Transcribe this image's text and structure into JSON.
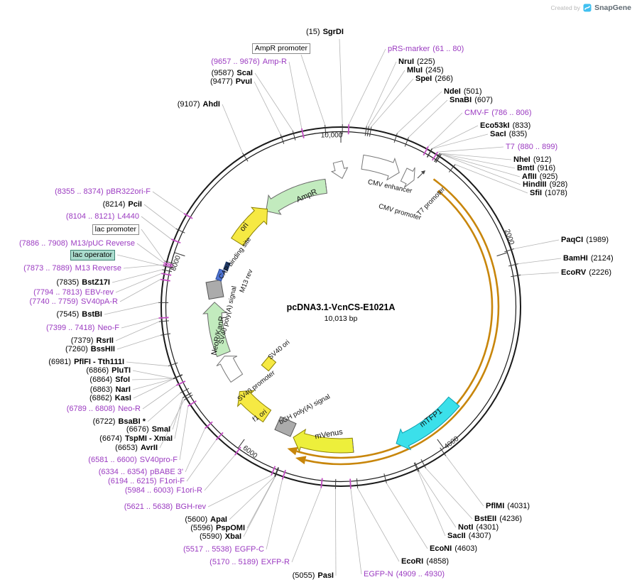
{
  "meta": {
    "created_by": "Created by",
    "brand": "SnapGene"
  },
  "plasmid": {
    "name": "pcDNA3.1-VcnCS-E1021A",
    "size": "10,013 bp"
  },
  "axis_ticks": {
    "k10": "10,000",
    "k2": "2000",
    "k4": "4000",
    "k6": "6000",
    "k8": "8000"
  },
  "colors": {
    "primer_purple": "#9B3BC1",
    "site_tick_purple": "#C44FC4",
    "cds_orange": "#C8860B",
    "feature_green": "#C2EBBE",
    "feature_yellow": "#F6E943",
    "feature_cyan": "#3BE0EA",
    "lac_operator_highlight": "#AADCCE"
  },
  "features": {
    "ampr": "AmpR",
    "ori": "ori",
    "cap_binding": "CAP binding site",
    "m13_rev": "M13 rev",
    "sv40_pa": "SV40 poly(A) signal",
    "neor_kanr": "NeoR/KanR",
    "sv40_ori": "SV40 ori",
    "sv40_promoter": "SV40 promoter",
    "f1_ori": "f1 ori",
    "bgh_pa": "bGH poly(A) signal",
    "mvenus": "mVenus",
    "mtfp1": "mTFP1",
    "cmv_enhancer": "CMV enhancer",
    "cmv_promoter": "CMV promoter",
    "t7_promoter": "T7 promoter"
  },
  "labels": {
    "sgrdi": {
      "a": "(15)",
      "b": "SgrDI"
    },
    "ampr_promoter": {
      "t": "AmpR promoter"
    },
    "amp_r": {
      "a": "(9657 .. 9676)",
      "b": "Amp-R"
    },
    "scai": {
      "a": "(9587)",
      "b": "ScaI"
    },
    "pvui": {
      "a": "(9477)",
      "b": "PvuI"
    },
    "ahdi": {
      "a": "(9107)",
      "b": "AhdI"
    },
    "pbr322ori_f": {
      "a": "(8355 .. 8374)",
      "b": "pBR322ori-F"
    },
    "pcii": {
      "a": "(8214)",
      "b": "PciI"
    },
    "l4440": {
      "a": "(8104 .. 8121)",
      "b": "L4440"
    },
    "lac_promoter": {
      "t": "lac promoter"
    },
    "m13_puc_reverse": {
      "a": "(7886 .. 7908)",
      "b": "M13/pUC Reverse"
    },
    "lac_operator": {
      "t": "lac operator"
    },
    "m13_reverse": {
      "a": "(7873 .. 7889)",
      "b": "M13 Reverse"
    },
    "bstz17i": {
      "a": "(7835)",
      "b": "BstZ17I"
    },
    "ebv_rev": {
      "a": "(7794 .. 7813)",
      "b": "EBV-rev"
    },
    "sv40pa_r": {
      "a": "(7740 .. 7759)",
      "b": "SV40pA-R"
    },
    "bstbi": {
      "a": "(7545)",
      "b": "BstBI"
    },
    "neo_f": {
      "a": "(7399 .. 7418)",
      "b": "Neo-F"
    },
    "rsrii": {
      "a": "(7379)",
      "b": "RsrII"
    },
    "bsshii": {
      "a": "(7260)",
      "b": "BssHII"
    },
    "pflfi_tth111i": {
      "a": "(6981)",
      "b": "PflFI - Tth111I"
    },
    "pluti": {
      "a": "(6866)",
      "b": "PluTI"
    },
    "sfoi": {
      "a": "(6864)",
      "b": "SfoI"
    },
    "nari": {
      "a": "(6863)",
      "b": "NarI"
    },
    "kasi": {
      "a": "(6862)",
      "b": "KasI"
    },
    "neo_r": {
      "a": "(6789 .. 6808)",
      "b": "Neo-R"
    },
    "bsabi": {
      "a": "(6722)",
      "b": "BsaBI *"
    },
    "smai": {
      "a": "(6676)",
      "b": "SmaI"
    },
    "tspmi_xmai": {
      "a": "(6674)",
      "b": "TspMI - XmaI"
    },
    "avrii": {
      "a": "(6653)",
      "b": "AvrII"
    },
    "sv40pro_f": {
      "a": "(6581 .. 6600)",
      "b": "SV40pro-F"
    },
    "pbabe_3": {
      "a": "(6334 .. 6354)",
      "b": "pBABE 3'"
    },
    "f1ori_f": {
      "a": "(6194 .. 6215)",
      "b": "F1ori-F"
    },
    "f1ori_r": {
      "a": "(5984 .. 6003)",
      "b": "F1ori-R"
    },
    "bgh_rev": {
      "a": "(5621 .. 5638)",
      "b": "BGH-rev"
    },
    "apai": {
      "a": "(5600)",
      "b": "ApaI"
    },
    "pspomi": {
      "a": "(5596)",
      "b": "PspOMI"
    },
    "xbai": {
      "a": "(5590)",
      "b": "XbaI"
    },
    "egfp_c": {
      "a": "(5517 .. 5538)",
      "b": "EGFP-C"
    },
    "exfp_r": {
      "a": "(5170 .. 5189)",
      "b": "EXFP-R"
    },
    "pasi": {
      "a": "(5055)",
      "b": "PasI"
    },
    "prs_marker": {
      "a": "pRS-marker",
      "b": "(61 .. 80)"
    },
    "nrui": {
      "a": "NruI",
      "b": "(225)"
    },
    "mlui": {
      "a": "MluI",
      "b": "(245)"
    },
    "spei": {
      "a": "SpeI",
      "b": "(266)"
    },
    "ndei": {
      "a": "NdeI",
      "b": "(501)"
    },
    "snabi": {
      "a": "SnaBI",
      "b": "(607)"
    },
    "cmv_f": {
      "a": "CMV-F",
      "b": "(786 .. 806)"
    },
    "eco53ki": {
      "a": "Eco53kI",
      "b": "(833)"
    },
    "saci": {
      "a": "SacI",
      "b": "(835)"
    },
    "t7": {
      "a": "T7",
      "b": "(880 .. 899)"
    },
    "nhei": {
      "a": "NheI",
      "b": "(912)"
    },
    "bmti": {
      "a": "BmtI",
      "b": "(916)"
    },
    "aflii": {
      "a": "AflII",
      "b": "(925)"
    },
    "hindiii": {
      "a": "HindIII",
      "b": "(928)"
    },
    "sfii": {
      "a": "SfiI",
      "b": "(1078)"
    },
    "paqci": {
      "a": "PaqCI",
      "b": "(1989)"
    },
    "bamhi": {
      "a": "BamHI",
      "b": "(2124)"
    },
    "ecorv": {
      "a": "EcoRV",
      "b": "(2226)"
    },
    "pflmi": {
      "a": "PflMI",
      "b": "(4031)"
    },
    "bsteii": {
      "a": "BstEII",
      "b": "(4236)"
    },
    "noti": {
      "a": "NotI",
      "b": "(4301)"
    },
    "sacii": {
      "a": "SacII",
      "b": "(4307)"
    },
    "econi": {
      "a": "EcoNI",
      "b": "(4603)"
    },
    "ecori": {
      "a": "EcoRI",
      "b": "(4858)"
    },
    "egfp_n": {
      "a": "EGFP-N",
      "b": "(4909 .. 4930)"
    }
  }
}
